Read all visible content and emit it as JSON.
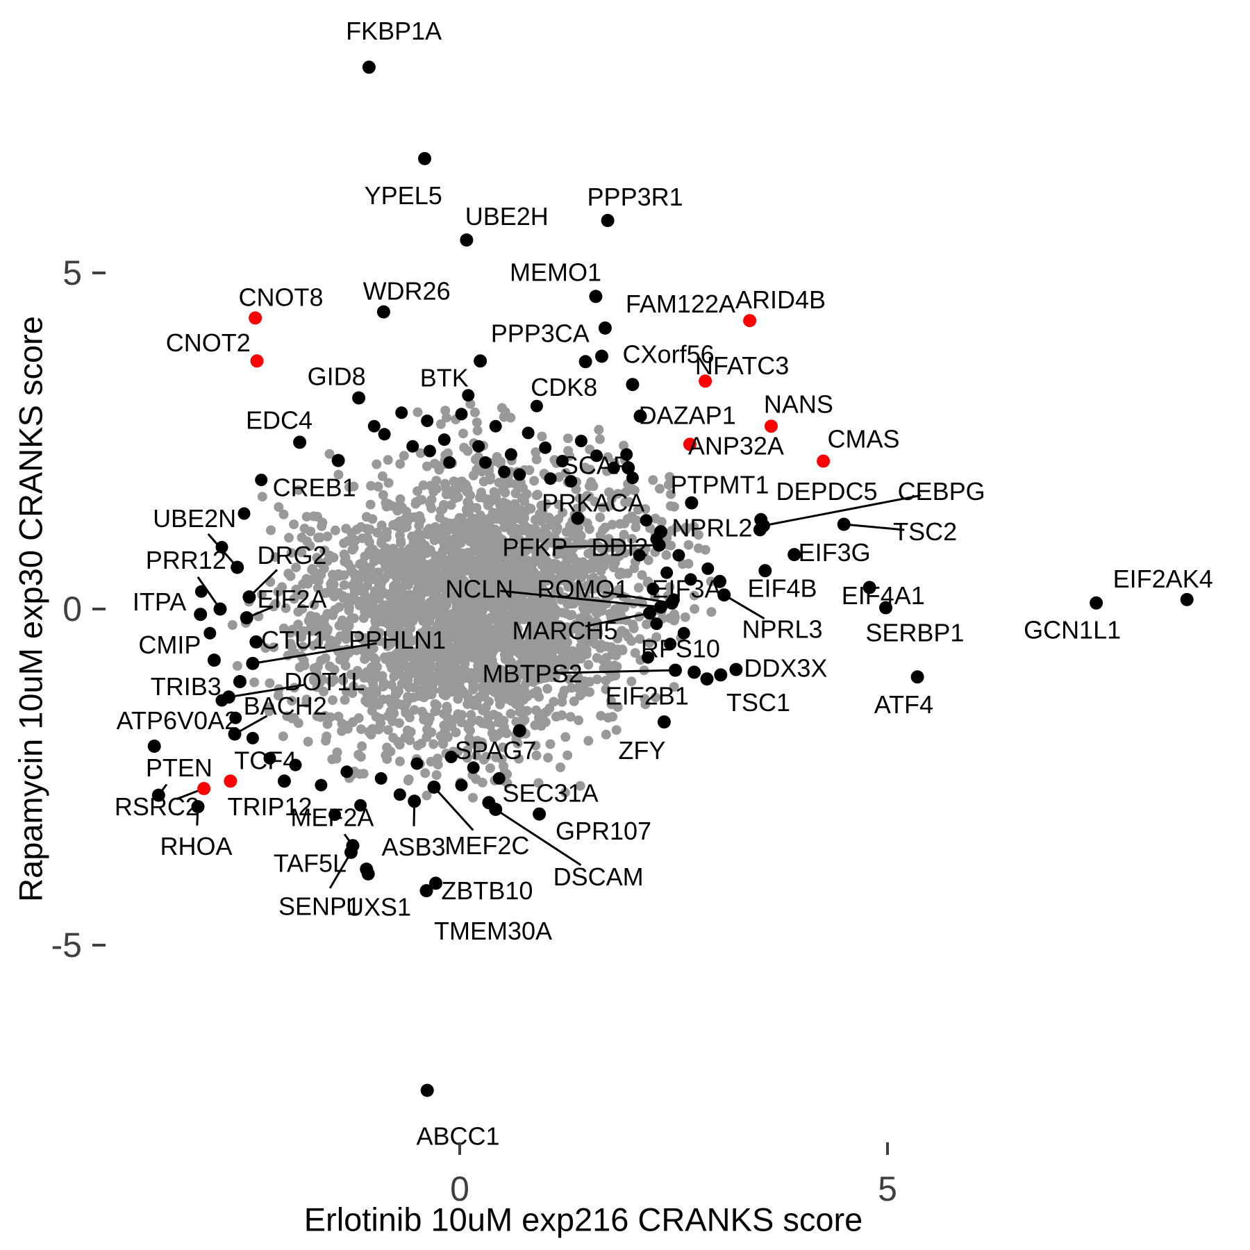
{
  "chart_data": {
    "type": "scatter",
    "title": "",
    "xlabel": "Erlotinib 10uM exp216 CRANKS score",
    "ylabel": "Rapamycin 10uM exp30 CRANKS score",
    "xlim": [
      -5.3,
      9.2
    ],
    "ylim": [
      -9.5,
      8.8
    ],
    "x_ticks": [
      0,
      5
    ],
    "y_ticks": [
      5,
      0,
      -5
    ],
    "x_tick_labels": [
      "0",
      "5"
    ],
    "y_tick_labels": [
      "5",
      "0",
      "-5"
    ],
    "grid": false,
    "legend": "none",
    "colors": {
      "cloud": "#999999",
      "significant": "#000000",
      "highlight": "#ff0000",
      "axis_text": "#3f3f3f"
    },
    "cloud": {
      "n": 2800,
      "cx": 0.18,
      "cy": 0.05,
      "sx": 1.02,
      "sy": 1.05,
      "corr": 0.15,
      "clip_sigma": 2.9,
      "seed": 20240516
    },
    "genes": [
      {
        "n": "FKBP1A",
        "x": -1.06,
        "y": 8.06,
        "lx": -0.77,
        "ly": 8.6
      },
      {
        "n": "YPEL5",
        "x": -0.41,
        "y": 6.7,
        "lx": -0.66,
        "ly": 6.15
      },
      {
        "n": "UBE2H",
        "x": 0.08,
        "y": 5.49,
        "lx": 0.55,
        "ly": 5.84
      },
      {
        "n": "PPP3R1",
        "x": 1.73,
        "y": 5.78,
        "lx": 2.05,
        "ly": 6.13
      },
      {
        "n": "MEMO1",
        "x": 1.59,
        "y": 4.65,
        "lx": 1.12,
        "ly": 5.01
      },
      {
        "n": "WDR26",
        "x": -0.89,
        "y": 4.42,
        "lx": -0.62,
        "ly": 4.73
      },
      {
        "n": "CNOT8",
        "x": -2.39,
        "y": 4.33,
        "lx": -2.09,
        "ly": 4.64,
        "c": "r"
      },
      {
        "n": "FAM122A",
        "x": 1.7,
        "y": 4.18,
        "lx": 2.58,
        "ly": 4.54
      },
      {
        "n": "ARID4B",
        "x": 3.39,
        "y": 4.29,
        "lx": 3.75,
        "ly": 4.6,
        "c": "r"
      },
      {
        "n": "PPP3CA",
        "x": 1.47,
        "y": 3.68,
        "lx": 0.94,
        "ly": 4.1
      },
      {
        "n": "CNOT2",
        "x": -2.37,
        "y": 3.69,
        "lx": -2.94,
        "ly": 3.96,
        "c": "r"
      },
      {
        "n": "CXorf56",
        "x": 1.66,
        "y": 3.76,
        "lx": 2.44,
        "ly": 3.79
      },
      {
        "n": "NFATC3",
        "x": 2.87,
        "y": 3.39,
        "lx": 3.3,
        "ly": 3.62,
        "c": "r"
      },
      {
        "n": "BTK",
        "x": 0.24,
        "y": 3.69,
        "lx": -0.18,
        "ly": 3.44
      },
      {
        "n": "CDK8",
        "x": 2.02,
        "y": 3.34,
        "lx": 1.22,
        "ly": 3.3
      },
      {
        "n": "GID8",
        "x": -1.18,
        "y": 3.14,
        "lx": -1.44,
        "ly": 3.46
      },
      {
        "n": "DAZAP1",
        "x": 2.11,
        "y": 2.87,
        "lx": 2.66,
        "ly": 2.88
      },
      {
        "n": "NANS",
        "x": 3.64,
        "y": 2.72,
        "lx": 3.96,
        "ly": 3.05,
        "c": "r"
      },
      {
        "n": "EDC4",
        "x": -1.87,
        "y": 2.48,
        "lx": -2.11,
        "ly": 2.81
      },
      {
        "n": "ANP32A",
        "x": 2.69,
        "y": 2.45,
        "lx": 3.23,
        "ly": 2.43,
        "c": "r"
      },
      {
        "n": "CMAS",
        "x": 4.25,
        "y": 2.2,
        "lx": 4.72,
        "ly": 2.53,
        "c": "r"
      },
      {
        "n": "SCAP",
        "x": 1.97,
        "y": 2.1,
        "lx": 1.59,
        "ly": 2.14
      },
      {
        "n": "CREB1",
        "x": -1.42,
        "y": 2.21,
        "lx": -1.7,
        "ly": 1.81
      },
      {
        "n": "PTPMT1",
        "x": 2.71,
        "y": 1.58,
        "lx": 3.04,
        "ly": 1.85
      },
      {
        "n": "DEPDC5",
        "x": 3.52,
        "y": 1.33,
        "lx": 4.29,
        "ly": 1.75
      },
      {
        "n": "CEBPG",
        "x": 3.55,
        "y": 1.24,
        "lx": 5.63,
        "ly": 1.75,
        "l": 1
      },
      {
        "n": "NPRL2",
        "x": 3.51,
        "y": 1.18,
        "lx": 2.95,
        "ly": 1.21
      },
      {
        "n": "TSC2",
        "x": 4.49,
        "y": 1.26,
        "lx": 5.44,
        "ly": 1.15,
        "l": 1
      },
      {
        "n": "EIF3G",
        "x": 3.91,
        "y": 0.81,
        "lx": 4.38,
        "ly": 0.84
      },
      {
        "n": "PRKACA",
        "x": 1.38,
        "y": 1.35,
        "lx": 1.56,
        "ly": 1.58
      },
      {
        "n": "UBE2N",
        "x": -2.6,
        "y": 0.62,
        "lx": -3.1,
        "ly": 1.35,
        "l": 1
      },
      {
        "n": "PRR12",
        "x": -2.8,
        "y": 0.0,
        "lx": -3.2,
        "ly": 0.73,
        "l": 1
      },
      {
        "n": "DRG2",
        "x": -2.46,
        "y": 0.18,
        "lx": -1.96,
        "ly": 0.8,
        "l": 1
      },
      {
        "n": "EIF2A",
        "x": -2.49,
        "y": -0.13,
        "lx": -1.96,
        "ly": 0.15,
        "l": 1
      },
      {
        "n": "ITPA",
        "x": -3.03,
        "y": -0.08,
        "lx": -3.51,
        "ly": 0.11
      },
      {
        "n": "NCLN",
        "x": 2.35,
        "y": 0.03,
        "lx": 0.23,
        "ly": 0.3,
        "l": 1
      },
      {
        "n": "ROMO1",
        "x": 2.48,
        "y": 0.09,
        "lx": 1.44,
        "ly": 0.3,
        "l": 1
      },
      {
        "n": "EIF3A",
        "x": 3.04,
        "y": 0.41,
        "lx": 2.65,
        "ly": 0.3
      },
      {
        "n": "EIF4B",
        "x": 3.57,
        "y": 0.57,
        "lx": 3.77,
        "ly": 0.31
      },
      {
        "n": "EIF4A1",
        "x": 4.79,
        "y": 0.32,
        "lx": 4.95,
        "ly": 0.2
      },
      {
        "n": "NPRL3",
        "x": 3.09,
        "y": 0.21,
        "lx": 3.77,
        "ly": -0.3,
        "l": 1
      },
      {
        "n": "CMIP",
        "x": -2.87,
        "y": -0.76,
        "lx": -3.39,
        "ly": -0.53
      },
      {
        "n": "CTU1",
        "x": -2.38,
        "y": -0.49,
        "lx": -1.94,
        "ly": -0.46
      },
      {
        "n": "PPHLN1",
        "x": -2.42,
        "y": -0.81,
        "lx": -0.73,
        "ly": -0.46,
        "l": 1
      },
      {
        "n": "MARCH5",
        "x": 2.22,
        "y": -0.06,
        "lx": 1.23,
        "ly": -0.32,
        "l": 1
      },
      {
        "n": "PFKP",
        "x": 2.33,
        "y": 0.95,
        "lx": 0.88,
        "ly": 0.92,
        "l": 1
      },
      {
        "n": "DDI2",
        "x": 2.35,
        "y": 1.15,
        "lx": 1.87,
        "ly": 0.92
      },
      {
        "n": "TRIB3",
        "x": -2.57,
        "y": -1.08,
        "lx": -3.2,
        "ly": -1.15
      },
      {
        "n": "DOT1L",
        "x": -2.7,
        "y": -1.31,
        "lx": -1.58,
        "ly": -1.08,
        "l": 1
      },
      {
        "n": "BACH2",
        "x": -2.63,
        "y": -1.86,
        "lx": -2.04,
        "ly": -1.44,
        "l": 1
      },
      {
        "n": "ATP6V0A2",
        "x": -3.57,
        "y": -2.04,
        "lx": -3.3,
        "ly": -1.66
      },
      {
        "n": "MBTPS2",
        "x": 2.52,
        "y": -0.91,
        "lx": 0.85,
        "ly": -0.96,
        "l": 1
      },
      {
        "n": "RPS10",
        "x": 2.74,
        "y": -0.94,
        "lx": 2.58,
        "ly": -0.59
      },
      {
        "n": "EIF2B1",
        "x": 2.89,
        "y": -1.04,
        "lx": 2.19,
        "ly": -1.29
      },
      {
        "n": "TSC1",
        "x": 3.05,
        "y": -0.98,
        "lx": 3.49,
        "ly": -1.39
      },
      {
        "n": "DDX3X",
        "x": 3.23,
        "y": -0.9,
        "lx": 3.81,
        "ly": -0.88
      },
      {
        "n": "SERBP1",
        "x": 4.98,
        "y": 0.02,
        "lx": 5.32,
        "ly": -0.35
      },
      {
        "n": "ATF4",
        "x": 5.35,
        "y": -1.01,
        "lx": 5.19,
        "ly": -1.42
      },
      {
        "n": "EIF2AK4",
        "x": 8.5,
        "y": 0.14,
        "lx": 8.22,
        "ly": 0.45
      },
      {
        "n": "GCN1L1",
        "x": 7.44,
        "y": 0.09,
        "lx": 7.16,
        "ly": -0.31
      },
      {
        "n": "ZFY",
        "x": 2.39,
        "y": -1.68,
        "lx": 2.13,
        "ly": -2.1
      },
      {
        "n": "SPAG7",
        "x": 0.7,
        "y": -1.81,
        "lx": 0.42,
        "ly": -2.1
      },
      {
        "n": "SEC31A",
        "x": 0.34,
        "y": -2.88,
        "lx": 1.06,
        "ly": -2.74
      },
      {
        "n": "GPR107",
        "x": 0.93,
        "y": -3.05,
        "lx": 1.68,
        "ly": -3.3
      },
      {
        "n": "DSCAM",
        "x": 0.42,
        "y": -2.98,
        "lx": 1.62,
        "ly": -3.98,
        "l": 1
      },
      {
        "n": "MEF2C",
        "x": -0.3,
        "y": -2.65,
        "lx": 0.32,
        "ly": -3.52,
        "l": 1
      },
      {
        "n": "TCF4",
        "x": -2.05,
        "y": -2.56,
        "lx": -2.27,
        "ly": -2.25
      },
      {
        "n": "PTEN",
        "x": -3.52,
        "y": -2.77,
        "lx": -3.28,
        "ly": -2.36,
        "l": 1
      },
      {
        "n": "RSRC2",
        "x": -2.99,
        "y": -2.67,
        "lx": -3.54,
        "ly": -2.94,
        "c": "r",
        "l": 1
      },
      {
        "n": "TRIP12",
        "x": -2.68,
        "y": -2.56,
        "lx": -2.22,
        "ly": -2.94,
        "c": "r"
      },
      {
        "n": "RHOA",
        "x": -3.06,
        "y": -2.94,
        "lx": -3.08,
        "ly": -3.53,
        "l": 1
      },
      {
        "n": "MEF2A",
        "x": -1.25,
        "y": -3.52,
        "lx": -1.49,
        "ly": -3.1,
        "l": 1
      },
      {
        "n": "TAF5L",
        "x": -1.09,
        "y": -3.87,
        "lx": -1.75,
        "ly": -3.78
      },
      {
        "n": "ASB3",
        "x": -0.53,
        "y": -2.86,
        "lx": -0.54,
        "ly": -3.54,
        "l": 1
      },
      {
        "n": "SENP1",
        "x": -1.27,
        "y": -3.62,
        "lx": -1.64,
        "ly": -4.42,
        "l": 1
      },
      {
        "n": "UXS1",
        "x": -1.07,
        "y": -3.94,
        "lx": -0.95,
        "ly": -4.43
      },
      {
        "n": "ZBTB10",
        "x": -0.39,
        "y": -4.19,
        "lx": 0.32,
        "ly": -4.19
      },
      {
        "n": "TMEM30A",
        "x": -0.28,
        "y": -4.08,
        "lx": 0.39,
        "ly": -4.79
      },
      {
        "n": "ABCC1",
        "x": -0.38,
        "y": -7.16,
        "lx": -0.02,
        "ly": -7.84
      }
    ],
    "extra_black_points": [
      [
        -1.0,
        2.72
      ],
      [
        -0.88,
        2.6
      ],
      [
        -0.68,
        2.92
      ],
      [
        -0.55,
        2.42
      ],
      [
        -0.38,
        2.8
      ],
      [
        -0.18,
        2.52
      ],
      [
        0.02,
        2.9
      ],
      [
        0.22,
        2.42
      ],
      [
        0.42,
        2.72
      ],
      [
        0.6,
        2.3
      ],
      [
        0.8,
        2.62
      ],
      [
        1.0,
        2.4
      ],
      [
        1.2,
        2.2
      ],
      [
        1.42,
        2.5
      ],
      [
        1.6,
        2.28
      ],
      [
        1.8,
        2.1
      ],
      [
        0.1,
        3.18
      ],
      [
        0.9,
        3.02
      ],
      [
        -0.12,
        2.18
      ],
      [
        0.52,
        2.04
      ],
      [
        1.06,
        1.94
      ],
      [
        1.95,
        2.3
      ],
      [
        2.02,
        1.95
      ],
      [
        0.3,
        2.18
      ],
      [
        0.7,
        2.0
      ],
      [
        -0.35,
        2.35
      ],
      [
        1.3,
        1.9
      ],
      [
        2.18,
        1.32
      ],
      [
        2.3,
        1.04
      ],
      [
        2.1,
        0.8
      ],
      [
        2.42,
        0.54
      ],
      [
        2.26,
        0.3
      ],
      [
        2.5,
        0.14
      ],
      [
        2.3,
        -0.22
      ],
      [
        2.46,
        -0.52
      ],
      [
        2.2,
        -0.72
      ],
      [
        2.62,
        -0.36
      ],
      [
        2.56,
        0.8
      ],
      [
        2.7,
        0.44
      ],
      [
        2.9,
        0.6
      ],
      [
        -0.1,
        -2.2
      ],
      [
        0.16,
        -2.36
      ],
      [
        0.46,
        -2.52
      ],
      [
        -0.5,
        -2.3
      ],
      [
        -0.92,
        -2.52
      ],
      [
        -1.32,
        -2.42
      ],
      [
        -1.62,
        -2.62
      ],
      [
        -1.92,
        -2.32
      ],
      [
        -0.7,
        -2.76
      ],
      [
        0.02,
        -2.62
      ],
      [
        -2.22,
        -2.22
      ],
      [
        -2.42,
        -1.92
      ],
      [
        -2.62,
        -1.62
      ],
      [
        -2.78,
        -1.36
      ],
      [
        -1.16,
        -2.92
      ],
      [
        -1.46,
        -3.06
      ],
      [
        -2.92,
        -0.36
      ],
      [
        -3.02,
        0.26
      ],
      [
        -2.78,
        0.92
      ],
      [
        -2.52,
        1.42
      ],
      [
        -2.32,
        1.92
      ]
    ]
  }
}
